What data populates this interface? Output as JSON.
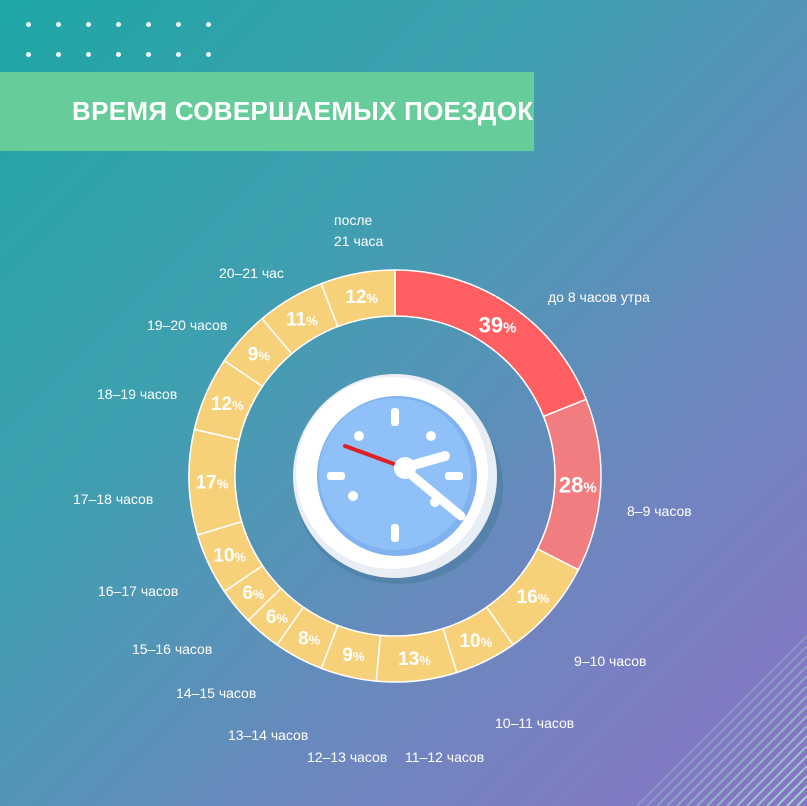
{
  "title": "ВРЕМЯ СОВЕРШАЕМЫХ ПОЕЗДОК",
  "chart_data": {
    "type": "pie",
    "value_suffix": "%",
    "slices": [
      {
        "label": "до 8 часов утра",
        "value": 39,
        "color": "#ff5f60"
      },
      {
        "label": "8–9 часов",
        "value": 28,
        "color": "#f17d80"
      },
      {
        "label": "9–10 часов",
        "value": 16,
        "color": "#f7d07a"
      },
      {
        "label": "10–11 часов",
        "value": 10,
        "color": "#f7d07a"
      },
      {
        "label": "11–12 часов",
        "value": 13,
        "color": "#f7d07a"
      },
      {
        "label": "12–13 часов",
        "value": 9,
        "color": "#f7d07a"
      },
      {
        "label": "13–14 часов",
        "value": 8,
        "color": "#f7d07a"
      },
      {
        "label": "14–15 часов",
        "value": 6,
        "color": "#f7d07a"
      },
      {
        "label": "15–16 часов",
        "value": 6,
        "color": "#f7d07a"
      },
      {
        "label": "16–17 часов",
        "value": 10,
        "color": "#f7d07a"
      },
      {
        "label": "17–18 часов",
        "value": 17,
        "color": "#f7d07a"
      },
      {
        "label": "18–19 часов",
        "value": 12,
        "color": "#f7d07a"
      },
      {
        "label": "19–20 часов",
        "value": 9,
        "color": "#f7d07a"
      },
      {
        "label": "20–21 час",
        "value": 11,
        "color": "#f7d07a"
      },
      {
        "label": "после\n21 часа",
        "value": 12,
        "color": "#f7d07a"
      }
    ]
  },
  "icons": {
    "center": "clock-icon"
  }
}
